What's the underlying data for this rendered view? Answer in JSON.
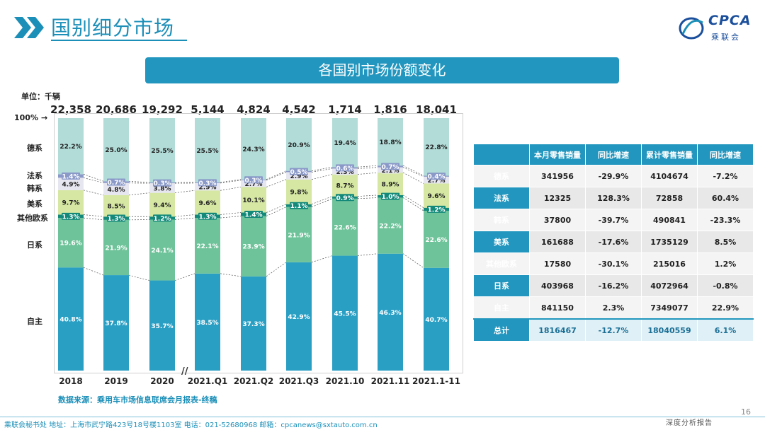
{
  "page": {
    "title": "国别细分市场",
    "banner": "各国别市场份额变化",
    "unit": "单位：千辆",
    "hundred_label": "100%",
    "hundred_arrow": "→",
    "axis_break": "//",
    "source": "数据来源：乘用车市场信息联席会月报表-终稿",
    "footer": "乘联会秘书处   地址：上海市武宁路423号18号楼1103室  电话：021-52680968   邮箱：cpcanews@sxtauto.com.cn",
    "footer_right": "深度分析报告",
    "page_number": "16",
    "logo_text": "CPCA",
    "logo_sub": "乘联会",
    "colors": {
      "accent": "#2296be",
      "title": "#1b8fb8"
    }
  },
  "chart_data": {
    "type": "bar",
    "stacked": true,
    "normalized": true,
    "categories": [
      "2018",
      "2019",
      "2020",
      "2021.Q1",
      "2021.Q2",
      "2021.Q3",
      "2021.10",
      "2021.11",
      "2021.1-11"
    ],
    "totals": [
      "22,358",
      "20,686",
      "19,292",
      "5,144",
      "4,824",
      "4,542",
      "1,714",
      "1,816",
      "18,041"
    ],
    "series": [
      {
        "name": "自主",
        "color": "#2a9fc4",
        "text_color": "#ffffff",
        "values": [
          40.8,
          37.8,
          35.7,
          38.5,
          37.3,
          42.9,
          45.5,
          46.3,
          40.7
        ],
        "labels": [
          "40.8%",
          "37.8%",
          "35.7%",
          "38.5%",
          "37.3%",
          "42.9%",
          "45.5%",
          "46.3%",
          "40.7%"
        ]
      },
      {
        "name": "日系",
        "color": "#6fc39a",
        "text_color": "#ffffff",
        "values": [
          19.6,
          21.9,
          24.1,
          22.1,
          23.9,
          21.9,
          22.6,
          22.2,
          22.6
        ],
        "labels": [
          "19.6%",
          "21.9%",
          "24.1%",
          "22.1%",
          "23.9%",
          "21.9%",
          "22.6%",
          "22.2%",
          "22.6%"
        ]
      },
      {
        "name": "其他欧系",
        "color": "#13897a",
        "text_color": "#ffffff",
        "values": [
          1.3,
          1.3,
          1.2,
          1.3,
          1.4,
          1.1,
          0.9,
          1.0,
          1.2
        ],
        "labels": [
          "1.3%",
          "1.3%",
          "1.2%",
          "1.3%",
          "1.4%",
          "1.1%",
          "0.9%",
          "1.0%",
          "1.2%"
        ]
      },
      {
        "name": "美系",
        "color": "#d5e7a3",
        "text_color": "#222222",
        "values": [
          9.7,
          8.5,
          9.4,
          9.6,
          10.1,
          9.8,
          8.7,
          8.9,
          9.6
        ],
        "labels": [
          "9.7%",
          "8.5%",
          "9.4%",
          "9.6%",
          "10.1%",
          "9.8%",
          "8.7%",
          "8.9%",
          "9.6%"
        ]
      },
      {
        "name": "韩系",
        "color": "#e6e6f0",
        "text_color": "#222222",
        "values": [
          4.9,
          4.8,
          3.8,
          2.9,
          2.7,
          2.9,
          2.3,
          2.1,
          2.7
        ],
        "labels": [
          "4.9%",
          "4.8%",
          "3.8%",
          "2.9%",
          "2.7%",
          "2.9%",
          "2.3%",
          "2.1%",
          "2.7%"
        ]
      },
      {
        "name": "法系",
        "color": "#8a99c8",
        "text_color": "#ffffff",
        "values": [
          1.4,
          0.7,
          0.3,
          0.3,
          0.3,
          0.5,
          0.6,
          0.7,
          0.4
        ],
        "labels": [
          "1.4%",
          "0.7%",
          "0.3%",
          "0.3%",
          "0.3%",
          "0.5%",
          "0.6%",
          "0.7%",
          "0.4%"
        ]
      },
      {
        "name": "德系",
        "color": "#b2dcd8",
        "text_color": "#222222",
        "values": [
          22.2,
          25.0,
          25.5,
          25.5,
          24.3,
          20.9,
          19.4,
          18.8,
          22.8
        ],
        "labels": [
          "22.2%",
          "25.0%",
          "25.5%",
          "25.5%",
          "24.3%",
          "20.9%",
          "19.4%",
          "18.8%",
          "22.8%"
        ]
      }
    ]
  },
  "table": {
    "headers": [
      "",
      "本月零售销量",
      "同比增速",
      "累计零售销量",
      "同比增速"
    ],
    "rows": [
      [
        "德系",
        "341956",
        "-29.9%",
        "4104674",
        "-7.2%"
      ],
      [
        "法系",
        "12325",
        "128.3%",
        "72858",
        "60.4%"
      ],
      [
        "韩系",
        "37800",
        "-39.7%",
        "490841",
        "-23.3%"
      ],
      [
        "美系",
        "161688",
        "-17.6%",
        "1735129",
        "8.5%"
      ],
      [
        "其他欧系",
        "17580",
        "-30.1%",
        "215016",
        "1.2%"
      ],
      [
        "日系",
        "403968",
        "-16.2%",
        "4072964",
        "-0.8%"
      ],
      [
        "自主",
        "841150",
        "2.3%",
        "7349077",
        "22.9%"
      ]
    ],
    "total": [
      "总计",
      "1816467",
      "-12.7%",
      "18040559",
      "6.1%"
    ]
  }
}
